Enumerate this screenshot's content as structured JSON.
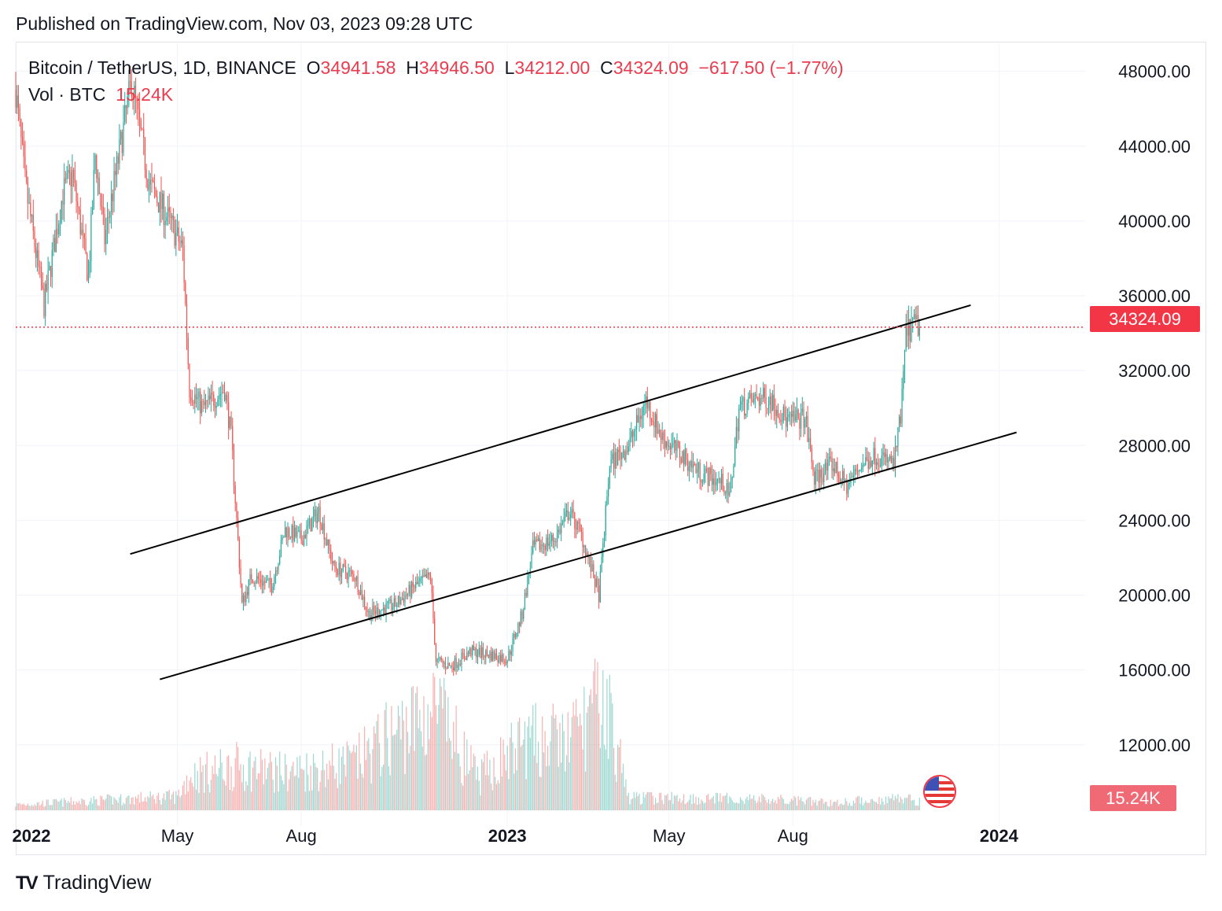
{
  "header": {
    "published": "Published on TradingView.com, Nov 03, 2023 09:28 UTC"
  },
  "legend": {
    "symbol": "Bitcoin / TetherUS, 1D, BINANCE",
    "o_label": "O",
    "o_value": "34941.58",
    "h_label": "H",
    "h_value": "34946.50",
    "l_label": "L",
    "l_value": "34212.00",
    "c_label": "C",
    "c_value": "34324.09",
    "change": "−617.50 (−1.77%)",
    "vol_label": "Vol · BTC",
    "vol_value": "15.24K"
  },
  "price_tag": "34324.09",
  "vol_tag": "15.24K",
  "brand": {
    "name": "TradingView",
    "logo": "TV"
  },
  "colors": {
    "up": "#26a69a",
    "down": "#ef5350",
    "last_price": "#f23645",
    "grid": "#f0f3fa"
  },
  "chart_data": {
    "type": "candlestick",
    "symbol": "BTCUSDT",
    "interval": "1D",
    "y_ticks": [
      "48000.00",
      "44000.00",
      "40000.00",
      "36000.00",
      "32000.00",
      "28000.00",
      "24000.00",
      "20000.00",
      "16000.00",
      "12000.00"
    ],
    "y_tick_values": [
      48000,
      44000,
      40000,
      36000,
      32000,
      28000,
      24000,
      20000,
      16000,
      12000
    ],
    "ylim": [
      8500,
      49500
    ],
    "x_ticks": [
      "2022",
      "May",
      "Aug",
      "2023",
      "May",
      "Aug",
      "2024"
    ],
    "x_tick_dates": [
      "2022-01-01",
      "2022-05-01",
      "2022-08-01",
      "2023-01-01",
      "2023-05-01",
      "2023-08-01",
      "2024-01-01"
    ],
    "xlim": [
      "2022-01-01",
      "2024-03-05"
    ],
    "last_price": 34324.09,
    "grid": true,
    "price_path": [
      [
        "2022-01-01",
        47000
      ],
      [
        "2022-01-08",
        42000
      ],
      [
        "2022-01-22",
        35500
      ],
      [
        "2022-02-05",
        41500
      ],
      [
        "2022-02-12",
        42500
      ],
      [
        "2022-02-24",
        37000
      ],
      [
        "2022-03-01",
        43500
      ],
      [
        "2022-03-08",
        39000
      ],
      [
        "2022-03-28",
        47500
      ],
      [
        "2022-04-10",
        42000
      ],
      [
        "2022-04-25",
        40000
      ],
      [
        "2022-05-05",
        38500
      ],
      [
        "2022-05-10",
        31000
      ],
      [
        "2022-05-20",
        30000
      ],
      [
        "2022-06-05",
        31000
      ],
      [
        "2022-06-10",
        28500
      ],
      [
        "2022-06-18",
        19500
      ],
      [
        "2022-06-25",
        21000
      ],
      [
        "2022-07-10",
        20500
      ],
      [
        "2022-07-20",
        23500
      ],
      [
        "2022-08-01",
        23000
      ],
      [
        "2022-08-14",
        24500
      ],
      [
        "2022-08-25",
        21500
      ],
      [
        "2022-09-10",
        21000
      ],
      [
        "2022-09-20",
        19000
      ],
      [
        "2022-10-10",
        19500
      ],
      [
        "2022-10-25",
        20500
      ],
      [
        "2022-11-05",
        21000
      ],
      [
        "2022-11-09",
        16500
      ],
      [
        "2022-11-20",
        16200
      ],
      [
        "2022-12-05",
        17000
      ],
      [
        "2022-12-20",
        16800
      ],
      [
        "2023-01-01",
        16600
      ],
      [
        "2023-01-12",
        19000
      ],
      [
        "2023-01-20",
        22500
      ],
      [
        "2023-02-05",
        23000
      ],
      [
        "2023-02-16",
        24500
      ],
      [
        "2023-02-25",
        23200
      ],
      [
        "2023-03-10",
        20000
      ],
      [
        "2023-03-18",
        27000
      ],
      [
        "2023-04-01",
        28000
      ],
      [
        "2023-04-14",
        30400
      ],
      [
        "2023-04-25",
        28500
      ],
      [
        "2023-05-10",
        27500
      ],
      [
        "2023-05-25",
        26500
      ],
      [
        "2023-06-10",
        26000
      ],
      [
        "2023-06-15",
        25200
      ],
      [
        "2023-06-22",
        30000
      ],
      [
        "2023-07-05",
        30500
      ],
      [
        "2023-07-15",
        30500
      ],
      [
        "2023-07-28",
        29300
      ],
      [
        "2023-08-10",
        29500
      ],
      [
        "2023-08-17",
        26200
      ],
      [
        "2023-08-30",
        27000
      ],
      [
        "2023-09-10",
        25800
      ],
      [
        "2023-09-20",
        26900
      ],
      [
        "2023-10-01",
        27500
      ],
      [
        "2023-10-15",
        27000
      ],
      [
        "2023-10-20",
        29500
      ],
      [
        "2023-10-24",
        34000
      ],
      [
        "2023-10-31",
        34500
      ],
      [
        "2023-11-03",
        34324
      ]
    ],
    "volume_path": [
      [
        "2022-01-01",
        9
      ],
      [
        "2022-05-01",
        22
      ],
      [
        "2022-05-10",
        55
      ],
      [
        "2022-06-15",
        70
      ],
      [
        "2022-07-20",
        60
      ],
      [
        "2022-09-10",
        75
      ],
      [
        "2022-10-05",
        115
      ],
      [
        "2022-11-09",
        160
      ],
      [
        "2022-12-10",
        50
      ],
      [
        "2023-01-15",
        110
      ],
      [
        "2023-02-15",
        110
      ],
      [
        "2023-03-15",
        175
      ],
      [
        "2023-04-01",
        20
      ],
      [
        "2023-07-01",
        18
      ],
      [
        "2023-09-01",
        12
      ],
      [
        "2023-10-24",
        20
      ],
      [
        "2023-11-03",
        15
      ]
    ],
    "trendlines": [
      {
        "from": [
          "2022-03-27",
          22200
        ],
        "to": [
          "2023-12-11",
          35500
        ]
      },
      {
        "from": [
          "2022-04-18",
          15500
        ],
        "to": [
          "2024-01-14",
          28700
        ]
      }
    ]
  }
}
